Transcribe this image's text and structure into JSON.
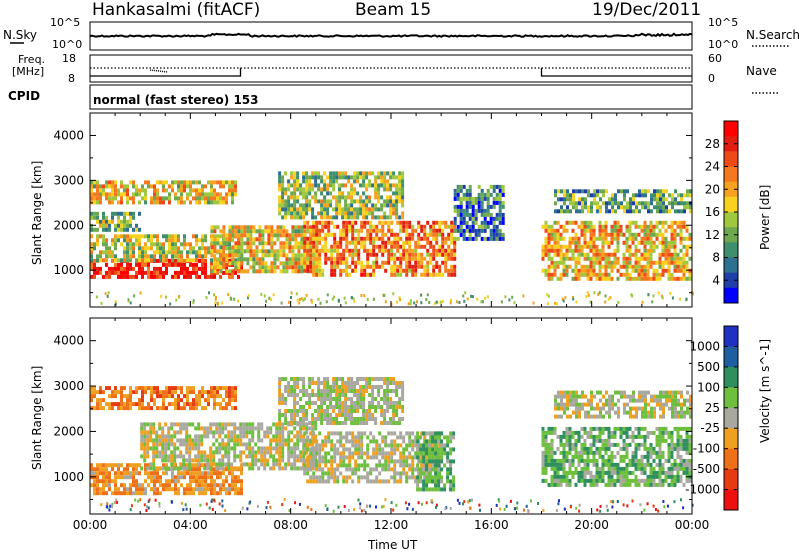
{
  "header": {
    "station": "Hankasalmi (fitACF)",
    "beam": "Beam 15",
    "date": "19/Dec/2011"
  },
  "noise_panel": {
    "left_label": "N.Sky",
    "right_label": "N.Search",
    "left_ticks": [
      "10^5",
      "10^0"
    ],
    "right_ticks": [
      "10^5",
      "10^0"
    ]
  },
  "freq_panel": {
    "left_label_1": "Freq.",
    "left_label_2": "[MHz]",
    "right_label": "Nave",
    "left_ticks": [
      "18",
      "8"
    ],
    "right_ticks": [
      "60",
      "0"
    ]
  },
  "cpid_panel": {
    "label": "CPID",
    "mode": "normal (fast stereo) 153"
  },
  "colors": {
    "power": [
      "#0000ff",
      "#1f3fa8",
      "#2f6f8f",
      "#3f8f6f",
      "#6fa84f",
      "#9fc83f",
      "#f7d21f",
      "#f7a21f",
      "#f4781f",
      "#ee4a18",
      "#e21e10",
      "#ff0000"
    ],
    "velocity": [
      "#2030c0",
      "#1f5f9f",
      "#2f8f5f",
      "#6fbf3f",
      "#a8a8a0",
      "#f0a020",
      "#f07018",
      "#e63a10",
      "#ee1010"
    ]
  },
  "chart_data": [
    {
      "type": "heatmap",
      "title": "Power",
      "ylabel": "Slant Range [km]",
      "colorbar_label": "Power [dB]",
      "colorbar_ticks": [
        "28",
        "24",
        "20",
        "16",
        "12",
        "8",
        "4"
      ],
      "ylim": [
        180,
        4500
      ],
      "yticks": [
        "4000",
        "3000",
        "2000",
        "1000"
      ],
      "xlim": [
        0,
        24
      ],
      "regions": [
        {
          "t0": 0.0,
          "t1": 6.0,
          "r0": 850,
          "r1": 1250,
          "level": 0.9
        },
        {
          "t0": 0.0,
          "t1": 6.0,
          "r0": 1250,
          "r1": 1800,
          "level": 0.5
        },
        {
          "t0": 0.0,
          "t1": 5.8,
          "r0": 2500,
          "r1": 3000,
          "level": 0.55
        },
        {
          "t0": 0.0,
          "t1": 2.0,
          "r0": 1900,
          "r1": 2300,
          "level": 0.4
        },
        {
          "t0": 4.8,
          "t1": 9.0,
          "r0": 1000,
          "r1": 2000,
          "level": 0.55
        },
        {
          "t0": 7.5,
          "t1": 12.5,
          "r0": 2200,
          "r1": 3200,
          "level": 0.45
        },
        {
          "t0": 8.5,
          "t1": 14.5,
          "r0": 900,
          "r1": 2100,
          "level": 0.7
        },
        {
          "t0": 14.5,
          "t1": 16.5,
          "r0": 1700,
          "r1": 2900,
          "level": 0.25
        },
        {
          "t0": 18.0,
          "t1": 23.9,
          "r0": 800,
          "r1": 2100,
          "level": 0.6
        },
        {
          "t0": 18.5,
          "t1": 23.9,
          "r0": 2300,
          "r1": 2800,
          "level": 0.35
        }
      ]
    },
    {
      "type": "heatmap",
      "title": "Velocity",
      "ylabel": "Slant Range [km]",
      "colorbar_label": "Velocity [m s^-1]",
      "colorbar_ticks": [
        "1000",
        "500",
        "100",
        "25",
        "-25",
        "-100",
        "-500",
        "-1000"
      ],
      "ylim": [
        180,
        4500
      ],
      "yticks": [
        "4000",
        "3000",
        "2000",
        "1000"
      ],
      "xlim": [
        0,
        24
      ],
      "xticks": [
        "00:00",
        "04:00",
        "08:00",
        "12:00",
        "16:00",
        "20:00",
        "00:00"
      ],
      "xlabel": "Time UT",
      "regions": [
        {
          "t0": 0.0,
          "t1": 6.0,
          "r0": 650,
          "r1": 1300,
          "level": -0.3
        },
        {
          "t0": 0.0,
          "t1": 5.8,
          "r0": 2500,
          "r1": 3000,
          "level": -0.4
        },
        {
          "t0": 2.0,
          "t1": 9.0,
          "r0": 1200,
          "r1": 2200,
          "level": 0.0
        },
        {
          "t0": 7.5,
          "t1": 12.5,
          "r0": 2200,
          "r1": 3200,
          "level": 0.05
        },
        {
          "t0": 8.5,
          "t1": 14.0,
          "r0": 900,
          "r1": 2000,
          "level": 0.0
        },
        {
          "t0": 13.0,
          "t1": 14.5,
          "r0": 700,
          "r1": 2000,
          "level": 0.3
        },
        {
          "t0": 18.0,
          "t1": 23.9,
          "r0": 800,
          "r1": 2100,
          "level": 0.25
        },
        {
          "t0": 18.5,
          "t1": 23.9,
          "r0": 2300,
          "r1": 2900,
          "level": 0.0
        }
      ]
    }
  ]
}
